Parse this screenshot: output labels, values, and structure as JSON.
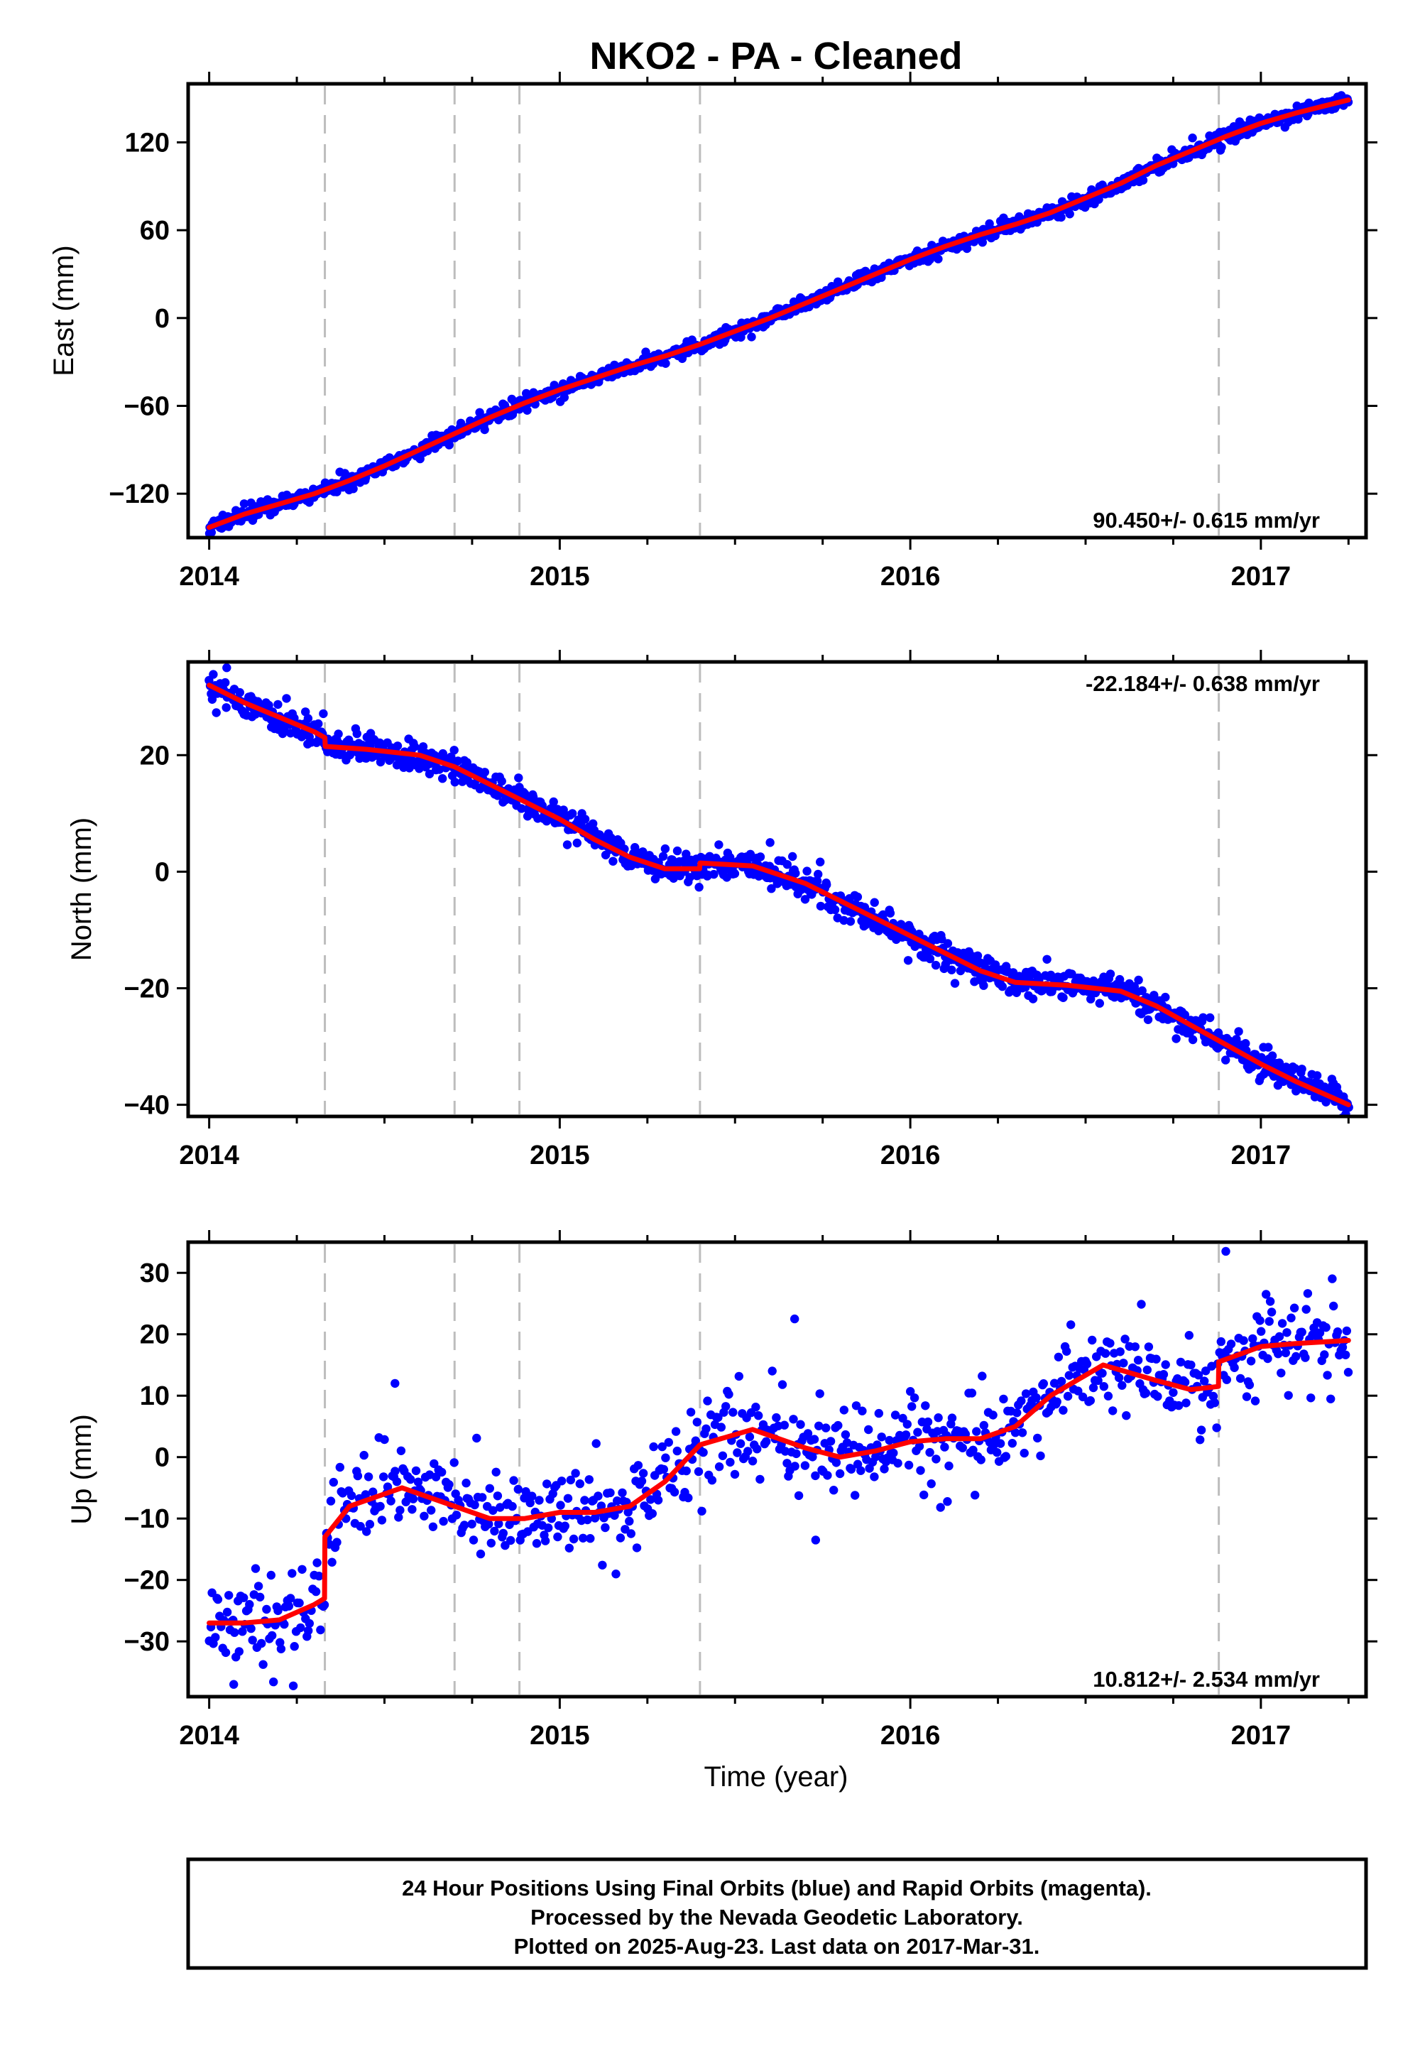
{
  "title": "NKO2  - PA - Cleaned",
  "colors": {
    "final_orbits": "#0000ff",
    "model": "#ff0000",
    "event_lines": "#bdbdbd",
    "frame": "#000000"
  },
  "x_axis": {
    "label": "Time (year)",
    "range": [
      2013.94,
      2017.3
    ],
    "ticks": [
      "2014",
      "2015",
      "2016",
      "2017"
    ],
    "tick_values": [
      2014,
      2015,
      2016,
      2017
    ]
  },
  "events": [
    2014.33,
    2014.7,
    2014.885,
    2015.4,
    2016.88
  ],
  "footer": {
    "line1": "24 Hour Positions Using Final Orbits (blue) and Rapid Orbits (magenta).",
    "line2": "Processed by the Nevada Geodetic Laboratory.",
    "line3": "Plotted on 2025-Aug-23. Last data on 2017-Mar-31."
  },
  "chart_data": [
    {
      "type": "scatter",
      "component": "east",
      "ylabel": "East (mm)",
      "ylim": [
        -150,
        160
      ],
      "yticks": [
        -120,
        -60,
        0,
        60,
        120
      ],
      "rate": "90.450+/- 0.615 mm/yr",
      "rate_position": "bottom-right",
      "series": [
        {
          "x": [
            2014.0,
            2014.1,
            2014.2,
            2014.3,
            2014.4,
            2014.5,
            2014.6,
            2014.7,
            2014.8,
            2014.9,
            2015.0,
            2015.1,
            2015.2,
            2015.3,
            2015.4,
            2015.5,
            2015.6,
            2015.7,
            2015.8,
            2015.9,
            2016.0,
            2016.1,
            2016.2,
            2016.3,
            2016.4,
            2016.5,
            2016.6,
            2016.7,
            2016.8,
            2016.9,
            2017.0,
            2017.1,
            2017.25
          ],
          "y": [
            -143,
            -134,
            -127,
            -120,
            -111,
            -101,
            -90,
            -79,
            -68,
            -58,
            -49,
            -41,
            -33,
            -26,
            -18,
            -9,
            0,
            10,
            20,
            30,
            40,
            49,
            57,
            64,
            72,
            82,
            92,
            104,
            114,
            124,
            133,
            140,
            149
          ]
        }
      ],
      "noise": 2.5,
      "outliers": []
    },
    {
      "type": "scatter",
      "component": "north",
      "ylabel": "North (mm)",
      "ylim": [
        -42,
        36
      ],
      "yticks": [
        -40,
        -20,
        0,
        20
      ],
      "rate": "-22.184+/- 0.638 mm/yr",
      "rate_position": "top-right",
      "series": [
        {
          "x": [
            2014.0,
            2014.1,
            2014.2,
            2014.3,
            2014.33,
            2014.331,
            2014.45,
            2014.6,
            2014.7,
            2014.8,
            2014.9,
            2015.0,
            2015.1,
            2015.2,
            2015.3,
            2015.399,
            2015.4,
            2015.55,
            2015.7,
            2015.8,
            2015.9,
            2016.0,
            2016.1,
            2016.2,
            2016.3,
            2016.45,
            2016.6,
            2016.7,
            2016.88,
            2017.0,
            2017.1,
            2017.25
          ],
          "y": [
            32,
            29,
            26.5,
            24,
            23,
            21.5,
            21,
            20,
            18,
            15,
            12,
            9,
            5.5,
            2.5,
            0.5,
            0.5,
            1.5,
            1,
            -2,
            -5,
            -8,
            -11,
            -14,
            -17,
            -19,
            -19.5,
            -20.5,
            -23,
            -29,
            -33,
            -36,
            -40
          ]
        }
      ],
      "noise": 1.3,
      "outliers": [
        [
          2015.6,
          5
        ],
        [
          2014.05,
          35
        ]
      ]
    },
    {
      "type": "scatter",
      "component": "up",
      "ylabel": "Up (mm)",
      "ylim": [
        -39,
        35
      ],
      "yticks": [
        -30,
        -20,
        -10,
        0,
        10,
        20,
        30
      ],
      "rate": "10.812+/- 2.534 mm/yr",
      "rate_position": "bottom-right",
      "series": [
        {
          "x": [
            2014.0,
            2014.1,
            2014.2,
            2014.3,
            2014.329,
            2014.33,
            2014.4,
            2014.55,
            2014.7,
            2014.8,
            2014.9,
            2015.0,
            2015.1,
            2015.2,
            2015.3,
            2015.4,
            2015.55,
            2015.7,
            2015.8,
            2015.9,
            2016.0,
            2016.1,
            2016.2,
            2016.3,
            2016.4,
            2016.55,
            2016.7,
            2016.8,
            2016.879,
            2016.88,
            2017.0,
            2017.1,
            2017.25
          ],
          "y": [
            -27,
            -27,
            -26.5,
            -24,
            -23,
            -13,
            -8,
            -5,
            -8,
            -10,
            -10,
            -9,
            -9,
            -8,
            -4,
            2,
            4.5,
            1.5,
            0,
            1,
            2.5,
            3,
            3,
            5,
            10,
            15,
            12.5,
            11,
            11.5,
            15.5,
            18,
            18.5,
            19
          ]
        }
      ],
      "noise": 3.5,
      "outliers": [
        [
          2014.53,
          12
        ],
        [
          2015.67,
          22.5
        ],
        [
          2016.9,
          33.5
        ],
        [
          2015.73,
          -13.5
        ],
        [
          2014.07,
          -37
        ]
      ]
    }
  ]
}
